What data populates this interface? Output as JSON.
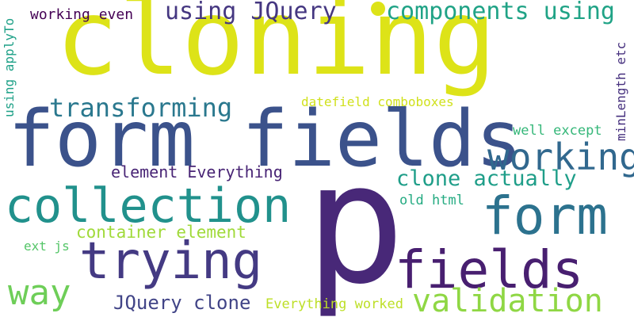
{
  "words": {
    "cloning": {
      "text": "cloning",
      "color": "#dde318"
    },
    "form_fields": {
      "text": "form fields",
      "color": "#3b528b"
    },
    "p": {
      "text": "p",
      "color": "#482878"
    },
    "collection": {
      "text": "collection",
      "color": "#21918c"
    },
    "trying": {
      "text": "trying",
      "color": "#443a83"
    },
    "fields": {
      "text": "fields",
      "color": "#481f70"
    },
    "form": {
      "text": "form",
      "color": "#2c728e"
    },
    "working": {
      "text": "working",
      "color": "#31688e"
    },
    "validation": {
      "text": "validation",
      "color": "#8fd744"
    },
    "way": {
      "text": "way",
      "color": "#6ece58"
    },
    "transforming": {
      "text": "transforming",
      "color": "#2a788e"
    },
    "using_jquery": {
      "text": "using JQuery",
      "color": "#453781"
    },
    "components_using": {
      "text": "components using",
      "color": "#20a386"
    },
    "clone_actually": {
      "text": "clone actually",
      "color": "#1f9e89"
    },
    "jquery_clone": {
      "text": "JQuery clone",
      "color": "#414487"
    },
    "container_element": {
      "text": "container element",
      "color": "#a0da39"
    },
    "element_everything": {
      "text": "element Everything",
      "color": "#482475"
    },
    "working_even": {
      "text": "working even",
      "color": "#440154"
    },
    "datefield_comboboxes": {
      "text": "datefield comboboxes",
      "color": "#d0e11c"
    },
    "well_except": {
      "text": "well except",
      "color": "#35b779"
    },
    "old_html": {
      "text": "old html",
      "color": "#25ab82"
    },
    "everything_worked": {
      "text": "Everything worked",
      "color": "#bddf26"
    },
    "ext_js": {
      "text": "ext js",
      "color": "#54c568"
    },
    "using_applyto": {
      "text": "using applyTo",
      "color": "#1fa188"
    },
    "minlength_etc": {
      "text": "minLength etc",
      "color": "#46307e"
    }
  },
  "dot_color": "#dde318"
}
